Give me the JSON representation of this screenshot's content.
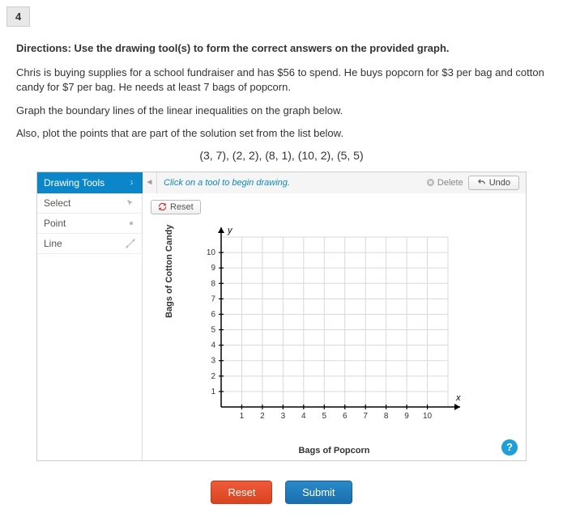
{
  "question_number": "4",
  "directions_head": "Directions: Use the drawing tool(s) to form the correct answers on the provided graph.",
  "p1": "Chris is buying supplies for a school fundraiser and has $56 to spend. He buys popcorn for $3 per bag and cotton candy for $7 per bag. He needs at least 7 bags of popcorn.",
  "p2": "Graph the boundary lines of the linear inequalities on the graph below.",
  "p3": "Also, plot the points that are part of the solution set from the list below.",
  "coord_list": "(3, 7), (2, 2), (8, 1), (10, 2), (5, 5)",
  "toolbar": {
    "title": "Drawing Tools",
    "hint": "Click on a tool to begin drawing.",
    "delete_label": "Delete",
    "undo_label": "Undo",
    "reset_label": "Reset",
    "tools": {
      "select": "Select",
      "point": "Point",
      "line": "Line"
    }
  },
  "graph": {
    "y_axis_label": "Bags of Cotton Candy",
    "x_axis_label": "Bags of Popcorn",
    "y_var": "y",
    "x_var": "x",
    "xlim": [
      0,
      11
    ],
    "ylim": [
      0,
      11
    ],
    "xticks": [
      1,
      2,
      3,
      4,
      5,
      6,
      7,
      8,
      9,
      10
    ],
    "yticks": [
      1,
      2,
      3,
      4,
      5,
      6,
      7,
      8,
      9,
      10
    ],
    "grid_color": "#d9d9d9",
    "axis_color": "#000000",
    "tick_fontsize": 10,
    "label_fontsize": 11
  },
  "help_icon": "?",
  "footer": {
    "reset": "Reset",
    "submit": "Submit"
  },
  "colors": {
    "primary_blue": "#0b87c9",
    "reset_red": "#e24b26",
    "submit_blue": "#2279b8"
  }
}
